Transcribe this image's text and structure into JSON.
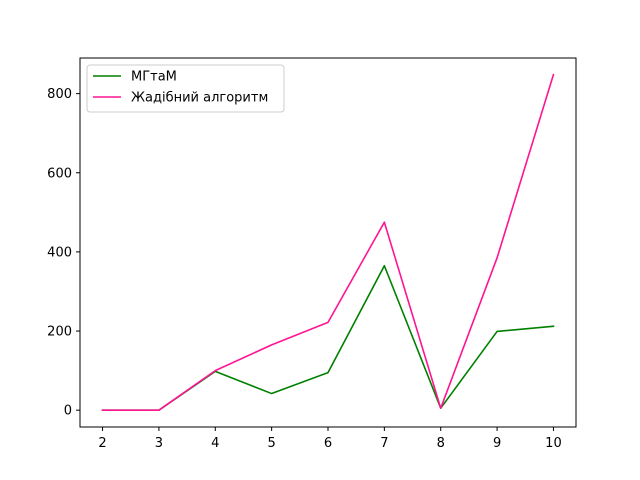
{
  "chart_data": {
    "type": "line",
    "title": "",
    "xlabel": "",
    "ylabel": "",
    "x": [
      2,
      3,
      4,
      5,
      6,
      7,
      8,
      9,
      10
    ],
    "xlim": [
      1.6,
      10.4
    ],
    "ylim": [
      -42.5,
      890
    ],
    "xticks": [
      2,
      3,
      4,
      5,
      6,
      7,
      8,
      9,
      10
    ],
    "yticks": [
      0,
      200,
      400,
      600,
      800
    ],
    "grid": false,
    "legend_position": "top-left",
    "series": [
      {
        "name": "МГтаМ",
        "color": "#008000",
        "values": [
          0,
          0,
          98,
          42,
          95,
          365,
          5,
          199,
          212
        ]
      },
      {
        "name": "Жадібний алгоритм",
        "color": "#ff1493",
        "values": [
          0,
          0,
          100,
          165,
          222,
          475,
          5,
          385,
          848
        ]
      }
    ]
  }
}
